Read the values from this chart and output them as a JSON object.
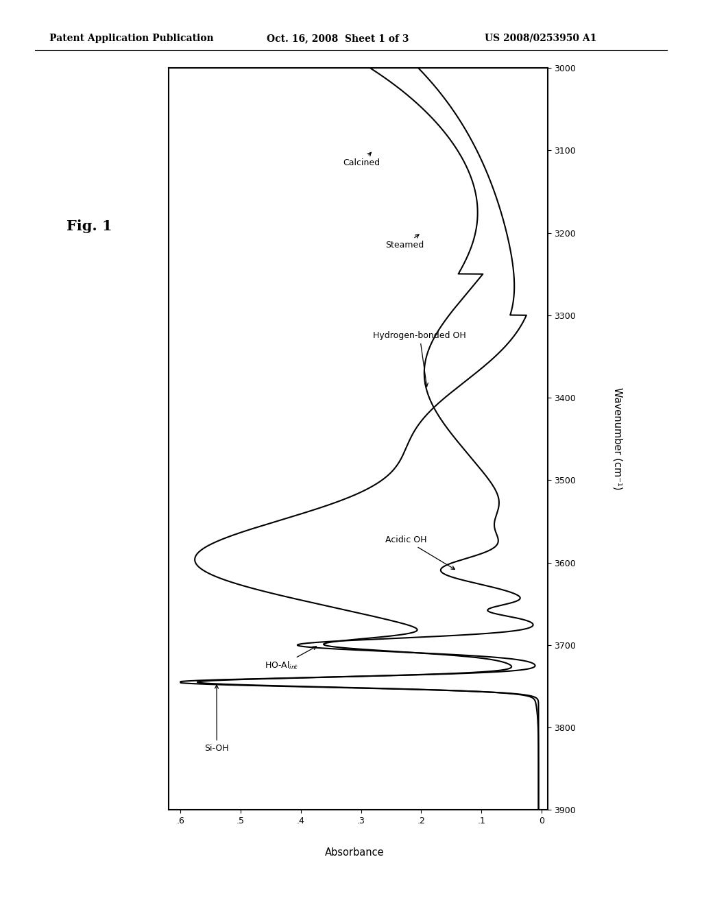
{
  "header_left": "Patent Application Publication",
  "header_mid": "Oct. 16, 2008  Sheet 1 of 3",
  "header_right": "US 2008/0253950 A1",
  "fig_label": "Fig. 1",
  "wavenumber_label": "Wavenumber (cm⁻¹)",
  "absorbance_label": "Absorbance",
  "wn_min": 3000,
  "wn_max": 3900,
  "abs_min": 0.0,
  "abs_max": 0.6,
  "ytick_vals": [
    3000,
    3100,
    3200,
    3300,
    3400,
    3500,
    3600,
    3700,
    3800,
    3900
  ],
  "xtick_vals": [
    0.0,
    0.1,
    0.2,
    0.3,
    0.4,
    0.5,
    0.6
  ],
  "xtick_labels": [
    "0",
    ".1",
    ".2",
    ".3",
    ".4",
    ".5",
    ".6"
  ],
  "background": "#ffffff",
  "line_color": "#000000",
  "line_width": 1.5
}
